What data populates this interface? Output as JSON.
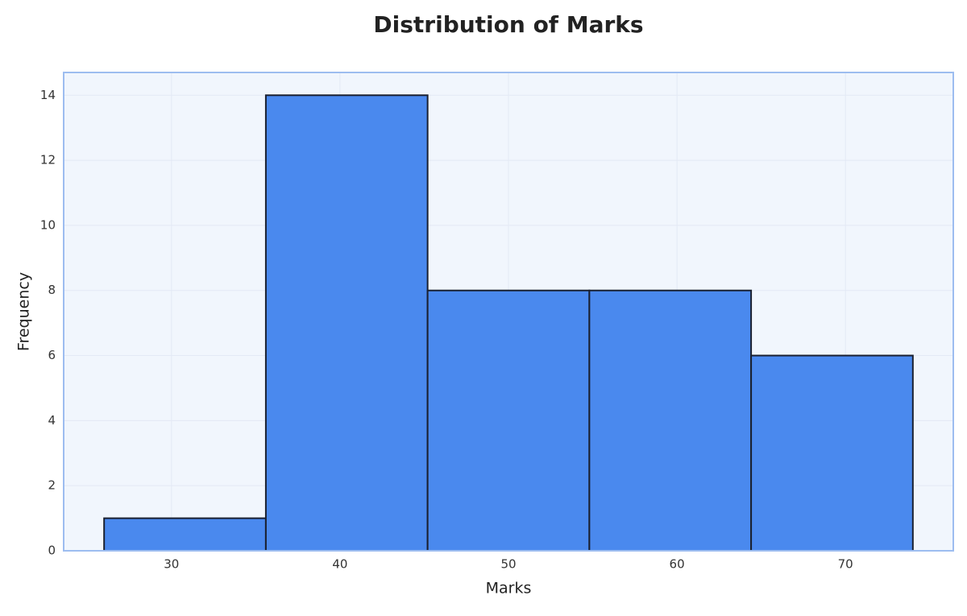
{
  "chart_data": {
    "type": "histogram",
    "title": "Distribution of Marks",
    "x_label": "Marks",
    "y_label": "Frequency",
    "bins": [
      26,
      35.6,
      45.2,
      54.8,
      64.4,
      74
    ],
    "counts": [
      1,
      14,
      8,
      8,
      6
    ],
    "color": "#4a89ee",
    "edge_color": "#1a2030",
    "xlim": [
      23.6,
      76.4
    ],
    "xticks": [
      30,
      40,
      50,
      60,
      70
    ],
    "ylim": [
      0,
      14.7
    ],
    "yticks": [
      0,
      2,
      4,
      6,
      8,
      10,
      12,
      14
    ],
    "grid": true
  }
}
